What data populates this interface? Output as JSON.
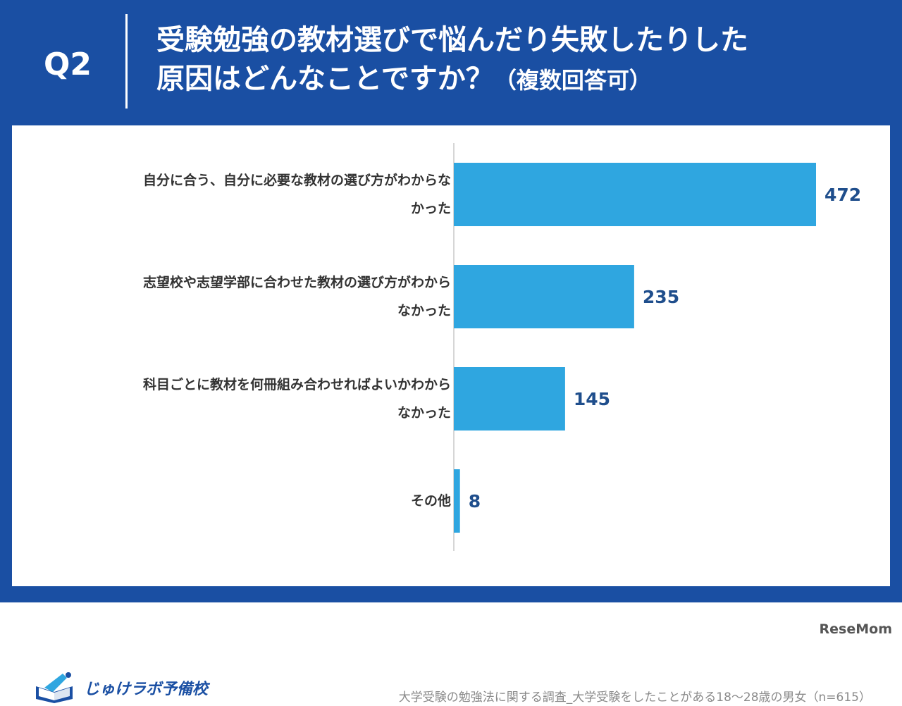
{
  "header": {
    "question_no": "Q2",
    "title_line1": "受験勉強の教材選びで悩んだり失敗したりした",
    "title_line2": "原因はどんなことですか？",
    "title_note": "（複数回答可）"
  },
  "chart_data": {
    "type": "bar",
    "orientation": "horizontal",
    "categories": [
      {
        "line1": "自分に合う、自分に必要な教材の選び方がわからな",
        "line2": "かった"
      },
      {
        "line1": "志望校や志望学部に合わせた教材の選び方がわから",
        "line2": "なかった"
      },
      {
        "line1": "科目ごとに教材を何冊組み合わせればよいかわから",
        "line2": "なかった"
      },
      {
        "line1": "その他",
        "line2": ""
      }
    ],
    "values": [
      472,
      235,
      145,
      8
    ],
    "value_labels": [
      "472",
      "235",
      "145",
      "8"
    ],
    "xlim": [
      0,
      520
    ],
    "grid": false,
    "bar_color": "#2fa6e0",
    "label_color": "#1f4e8c"
  },
  "footer": {
    "logo_text": "じゅけラボ予備校",
    "source": "大学受験の勉強法に関する調査_大学受験をしたことがある18～28歳の男女（n=615）",
    "credit": "ReseMom"
  },
  "colors": {
    "frame": "#1a4fa3",
    "panel": "#ffffff"
  }
}
